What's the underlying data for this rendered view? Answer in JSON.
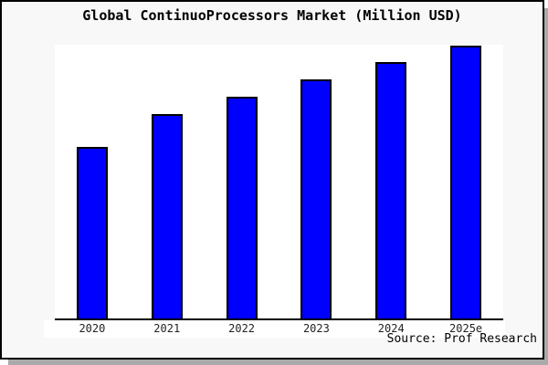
{
  "header": {
    "title": "Global ContinuoProcessors Market (Million USD)"
  },
  "footer": {
    "source": "Source: Prof Research"
  },
  "colors": {
    "bar_fill": "#0000ff",
    "bar_border": "#000000",
    "figure_bg": "#f8f8f8",
    "plot_bg": "#ffffff",
    "axis": "#000000",
    "frame_border": "#000000",
    "frame_shadow": "#aaaaaa",
    "tick_label": "#222222"
  },
  "chart_data": {
    "type": "bar",
    "title": "Global ContinuoProcessors Market (Million USD)",
    "categories": [
      "2020",
      "2021",
      "2022",
      "2023",
      "2024",
      "2025e"
    ],
    "values": [
      62.6,
      74.8,
      81.1,
      87.4,
      93.5,
      99.7
    ],
    "value_unit": "percent of plot height (no y-axis scale shown in chart)",
    "xlabel": "",
    "ylabel": "",
    "ylim": [
      0,
      100
    ],
    "grid": false,
    "legend": false,
    "y_axis_tick_labels_shown": false,
    "bar_color": "#0000ff",
    "source_note": "Source: Prof Research"
  }
}
